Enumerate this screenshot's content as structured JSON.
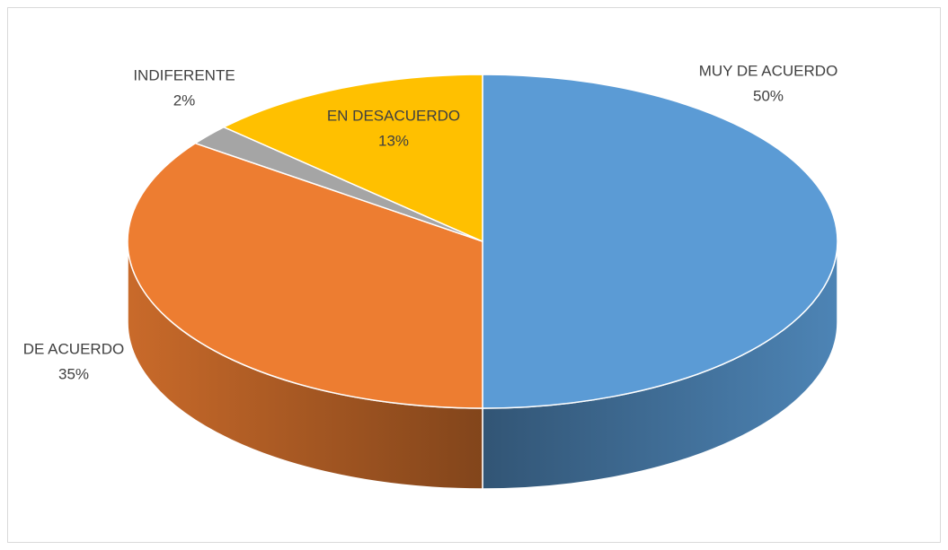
{
  "chart_data": {
    "type": "pie",
    "categories": [
      "MUY DE ACUERDO",
      "DE ACUERDO",
      "INDIFERENTE",
      "EN DESACUERDO"
    ],
    "values": [
      50,
      35,
      2,
      13
    ],
    "value_labels": [
      "50%",
      "35%",
      "2%",
      "13%"
    ],
    "colors": [
      "#5b9bd5",
      "#ed7d31",
      "#a5a5a5",
      "#ffc000"
    ]
  }
}
